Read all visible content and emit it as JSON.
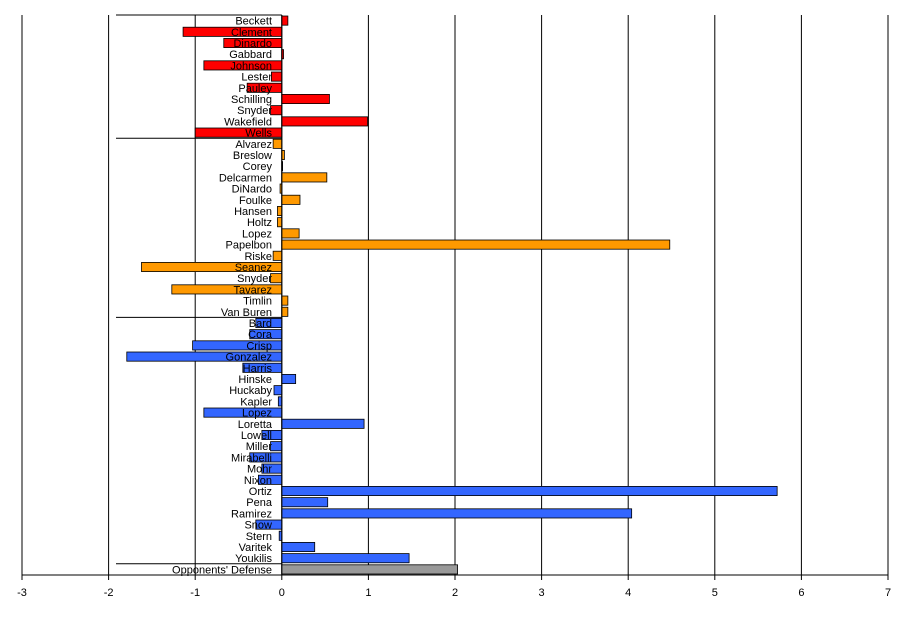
{
  "chart_data": {
    "type": "bar",
    "orientation": "horizontal",
    "xlim": [
      -3,
      7
    ],
    "x_ticks": [
      "-3",
      "-2",
      "-1",
      "0",
      "1",
      "2",
      "3",
      "4",
      "5",
      "6",
      "7"
    ],
    "grid": "vertical",
    "title": "",
    "xlabel": "",
    "ylabel": "",
    "groups": [
      {
        "color": "#ff0000",
        "items": [
          {
            "label": "Beckett",
            "value": 0.07
          },
          {
            "label": "Clement",
            "value": -1.14
          },
          {
            "label": "Dinardo",
            "value": -0.67
          },
          {
            "label": "Gabbard",
            "value": 0.02
          },
          {
            "label": "Johnson",
            "value": -0.9
          },
          {
            "label": "Lester",
            "value": -0.12
          },
          {
            "label": "Pauley",
            "value": -0.4
          },
          {
            "label": "Schilling",
            "value": 0.55
          },
          {
            "label": "Snyder",
            "value": -0.13
          },
          {
            "label": "Wakefield",
            "value": 0.99
          },
          {
            "label": "Wells",
            "value": -1.0
          }
        ]
      },
      {
        "color": "#ff9900",
        "items": [
          {
            "label": "Alvarez",
            "value": -0.1
          },
          {
            "label": "Breslow",
            "value": 0.03
          },
          {
            "label": "Corey",
            "value": 0.0
          },
          {
            "label": "Delcarmen",
            "value": 0.52
          },
          {
            "label": "DiNardo",
            "value": -0.02
          },
          {
            "label": "Foulke",
            "value": 0.21
          },
          {
            "label": "Hansen",
            "value": -0.05
          },
          {
            "label": "Holtz",
            "value": -0.05
          },
          {
            "label": "Lopez",
            "value": 0.2
          },
          {
            "label": "Papelbon",
            "value": 4.48
          },
          {
            "label": "Riske",
            "value": -0.1
          },
          {
            "label": "Seanez",
            "value": -1.62
          },
          {
            "label": "Snyder",
            "value": -0.13
          },
          {
            "label": "Tavarez",
            "value": -1.27
          },
          {
            "label": "Timlin",
            "value": 0.07
          },
          {
            "label": "Van Buren",
            "value": 0.07
          }
        ]
      },
      {
        "color": "#3366ff",
        "items": [
          {
            "label": "Bard",
            "value": -0.3
          },
          {
            "label": "Cora",
            "value": -0.37
          },
          {
            "label": "Crisp",
            "value": -1.03
          },
          {
            "label": "Gonzalez",
            "value": -1.79
          },
          {
            "label": "Harris",
            "value": -0.45
          },
          {
            "label": "Hinske",
            "value": 0.16
          },
          {
            "label": "Huckaby",
            "value": -0.09
          },
          {
            "label": "Kapler",
            "value": -0.04
          },
          {
            "label": "Lopez",
            "value": -0.9
          },
          {
            "label": "Loretta",
            "value": 0.95
          },
          {
            "label": "Lowell",
            "value": -0.23
          },
          {
            "label": "Miller",
            "value": -0.13
          },
          {
            "label": "Mirabelli",
            "value": -0.37
          },
          {
            "label": "Mohr",
            "value": -0.23
          },
          {
            "label": "Nixon",
            "value": -0.27
          },
          {
            "label": "Ortiz",
            "value": 5.72
          },
          {
            "label": "Pena",
            "value": 0.53
          },
          {
            "label": "Ramirez",
            "value": 4.04
          },
          {
            "label": "Snow",
            "value": -0.3
          },
          {
            "label": "Stern",
            "value": -0.03
          },
          {
            "label": "Varitek",
            "value": 0.38
          },
          {
            "label": "Youkilis",
            "value": 1.47
          }
        ]
      },
      {
        "color": "#999999",
        "items": [
          {
            "label": "Opponents' Defense",
            "value": 2.03
          }
        ]
      }
    ]
  }
}
